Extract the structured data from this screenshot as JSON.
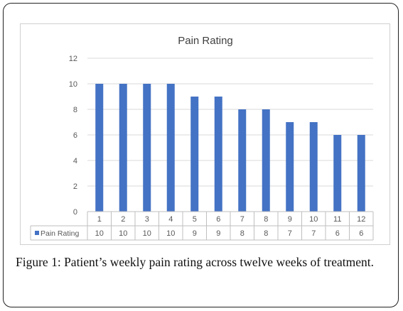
{
  "chart_data": {
    "type": "bar",
    "title": "Pain Rating",
    "categories": [
      "1",
      "2",
      "3",
      "4",
      "5",
      "6",
      "7",
      "8",
      "9",
      "10",
      "11",
      "12"
    ],
    "series": [
      {
        "name": "Pain Rating",
        "values": [
          10,
          10,
          10,
          10,
          9,
          9,
          8,
          8,
          7,
          7,
          6,
          6
        ]
      }
    ],
    "ylim": [
      0,
      12
    ],
    "yticks": [
      "0",
      "2",
      "4",
      "6",
      "8",
      "10",
      "12"
    ],
    "xlabel": "",
    "ylabel": "",
    "grid": true,
    "legend": "data-table",
    "data_table": true,
    "bar_color": "#4472c4"
  },
  "caption": {
    "label": "Figure 1:",
    "text": " Patient’s weekly pain rating across twelve weeks of treatment."
  }
}
